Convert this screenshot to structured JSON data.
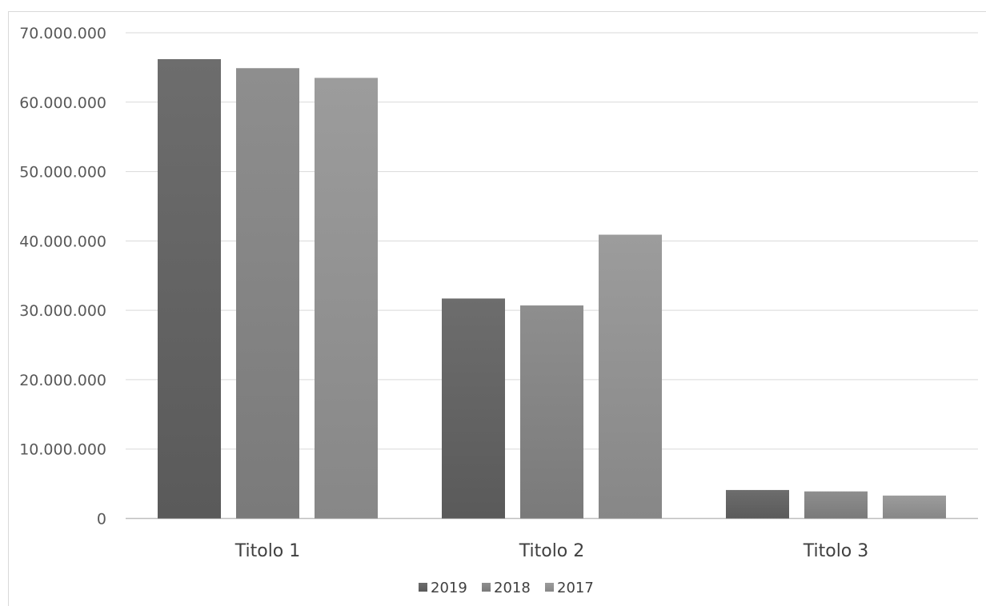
{
  "chart_data": {
    "type": "bar",
    "categories": [
      "Titolo 1",
      "Titolo 2",
      "Titolo 3"
    ],
    "series": [
      {
        "name": "2019",
        "values": [
          66200000,
          31700000,
          4100000
        ]
      },
      {
        "name": "2018",
        "values": [
          64900000,
          30700000,
          3900000
        ]
      },
      {
        "name": "2017",
        "values": [
          63500000,
          40900000,
          3300000
        ]
      }
    ],
    "y_ticks": [
      "0",
      "10.000.000",
      "20.000.000",
      "30.000.000",
      "40.000.000",
      "50.000.000",
      "60.000.000",
      "70.000.000"
    ],
    "ylim": [
      0,
      70000000
    ],
    "grid": true,
    "legend_position": "bottom",
    "colors": {
      "2019": [
        "#6d6d6d",
        "#5a5a5a"
      ],
      "2018": [
        "#8e8e8e",
        "#7a7a7a"
      ],
      "2017": [
        "#9c9c9c",
        "#878787"
      ]
    }
  }
}
